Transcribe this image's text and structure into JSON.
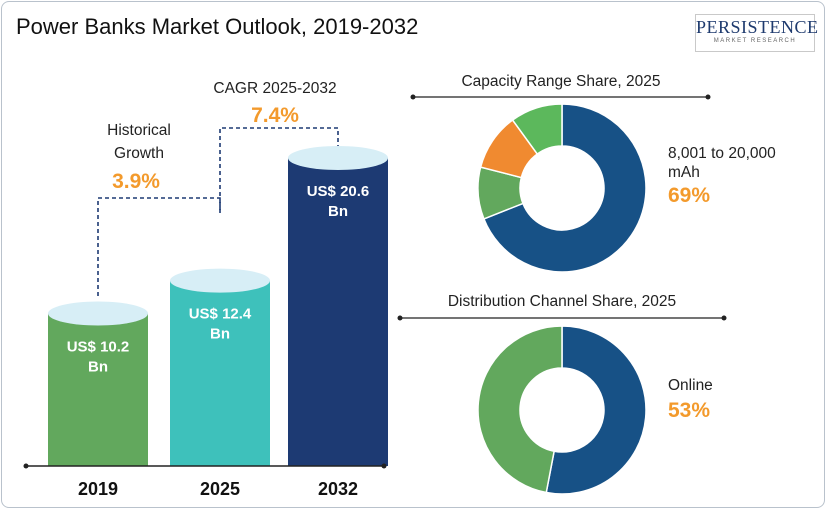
{
  "title": "Power Banks Market Outlook, 2019-2032",
  "logo": {
    "name": "PERSISTENCE",
    "tagline": "MARKET RESEARCH"
  },
  "colors": {
    "bar_2019": "#62a85d",
    "bar_2025": "#3ec1bb",
    "bar_2032": "#1d3a73",
    "cap": "#d7eef6",
    "orange": "#f39a2c",
    "donut_blue": "#175186",
    "donut_green": "#62a85d",
    "donut_orange": "#f08a30",
    "donut_green2": "#5cb85c"
  },
  "chart_data": [
    {
      "type": "bar",
      "categories": [
        "2019",
        "2025",
        "2032"
      ],
      "values": [
        10.2,
        12.4,
        20.6
      ],
      "value_labels": [
        "US$ 10.2 Bn",
        "US$ 12.4 Bn",
        "US$ 20.6 Bn"
      ],
      "ylim": [
        0,
        22
      ],
      "annotations": [
        {
          "label": "Historical Growth",
          "value": "3.9%"
        },
        {
          "label": "CAGR 2025-2032",
          "value": "7.4%"
        }
      ]
    },
    {
      "type": "pie",
      "title": "Capacity Range Share, 2025",
      "slices": [
        {
          "label": "8,001 to 20,000 mAh",
          "value": 69
        },
        {
          "label": "",
          "value": 10
        },
        {
          "label": "",
          "value": 11
        },
        {
          "label": "",
          "value": 10
        }
      ],
      "highlight_label": "8,001 to 20,000 mAh",
      "highlight_value": "69%"
    },
    {
      "type": "pie",
      "title": "Distribution Channel Share, 2025",
      "slices": [
        {
          "label": "Online",
          "value": 53
        },
        {
          "label": "",
          "value": 47
        }
      ],
      "highlight_label": "Online",
      "highlight_value": "53%"
    }
  ]
}
